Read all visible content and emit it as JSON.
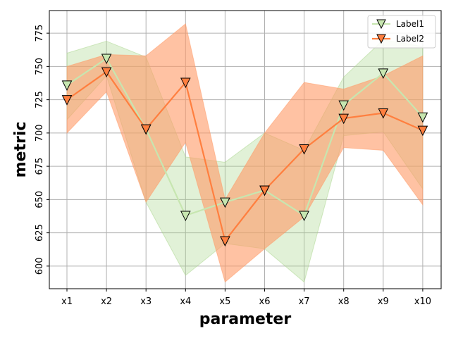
{
  "chart_data": {
    "type": "line",
    "xlabel": "parameter",
    "ylabel": "metric",
    "categories": [
      "x1",
      "x2",
      "x3",
      "x4",
      "x5",
      "x6",
      "x7",
      "x8",
      "x9",
      "x10"
    ],
    "ylim": [
      583,
      792
    ],
    "yticks": [
      600,
      625,
      650,
      675,
      700,
      725,
      750,
      775
    ],
    "grid": true,
    "legend_position": "top-right",
    "series": [
      {
        "name": "Label1",
        "color": "#c7e6b0",
        "band_color": "#a9d68c",
        "values": [
          736,
          756,
          703,
          638,
          648,
          657,
          638,
          721,
          745,
          712
        ],
        "lower": [
          710,
          743,
          648,
          593,
          617,
          613,
          588,
          698,
          701,
          658
        ],
        "upper": [
          760,
          769,
          757,
          682,
          678,
          700,
          687,
          742,
          770,
          765
        ]
      },
      {
        "name": "Label2",
        "color": "#ff7f3f",
        "band_color": "#ff9966",
        "values": [
          725,
          746,
          703,
          738,
          619,
          657,
          688,
          711,
          715,
          702
        ],
        "lower": [
          700,
          731,
          648,
          693,
          588,
          613,
          637,
          689,
          687,
          646
        ],
        "upper": [
          750,
          759,
          758,
          782,
          650,
          700,
          738,
          733,
          743,
          758
        ]
      }
    ]
  }
}
